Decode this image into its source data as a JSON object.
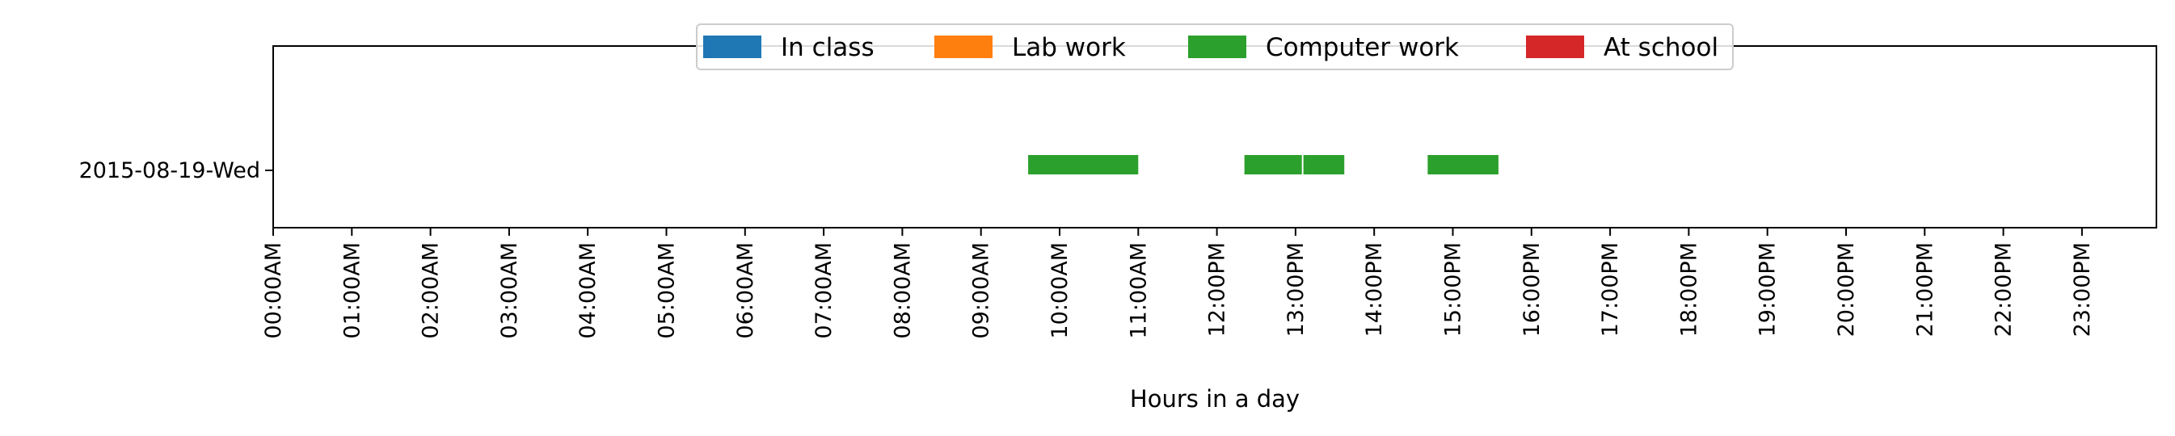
{
  "chart_data": {
    "type": "bar",
    "orientation": "horizontal-timeline",
    "title": "",
    "xlabel": "Hours in a day",
    "ylabel": "",
    "xlim": [
      0,
      24
    ],
    "x_ticks": [
      "00:00AM",
      "01:00AM",
      "02:00AM",
      "03:00AM",
      "04:00AM",
      "05:00AM",
      "06:00AM",
      "07:00AM",
      "08:00AM",
      "09:00AM",
      "10:00AM",
      "11:00AM",
      "12:00PM",
      "13:00PM",
      "14:00PM",
      "15:00PM",
      "16:00PM",
      "17:00PM",
      "18:00PM",
      "19:00PM",
      "20:00PM",
      "21:00PM",
      "22:00PM",
      "23:00PM"
    ],
    "categories": [
      "2015-08-19-Wed"
    ],
    "grid": false,
    "legend_position": "top-center",
    "series": [
      {
        "name": "In class",
        "color": "#1f77b4",
        "segments": []
      },
      {
        "name": "Lab work",
        "color": "#ff7f0e",
        "segments": []
      },
      {
        "name": "Computer work",
        "color": "#2ca02c",
        "segments": [
          {
            "category": "2015-08-19-Wed",
            "start": 9.6,
            "end": 11.0
          },
          {
            "category": "2015-08-19-Wed",
            "start": 12.35,
            "end": 13.08
          },
          {
            "category": "2015-08-19-Wed",
            "start": 13.1,
            "end": 13.62
          },
          {
            "category": "2015-08-19-Wed",
            "start": 14.68,
            "end": 15.58
          }
        ]
      },
      {
        "name": "At school",
        "color": "#d62728",
        "segments": []
      }
    ]
  }
}
